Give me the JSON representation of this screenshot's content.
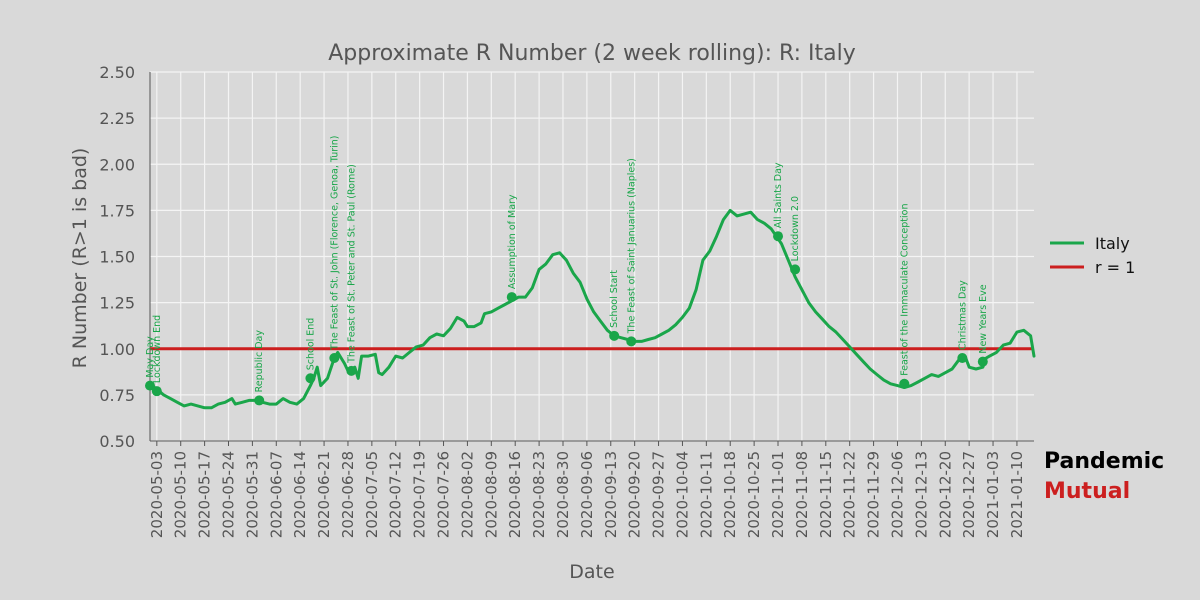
{
  "brand": {
    "line1": "Pandemic",
    "line2": "Mutual",
    "line1_color": "#000000",
    "line2_color": "#cc1f1f"
  },
  "chart_data": {
    "type": "line",
    "title": "Approximate R Number (2 week rolling): R: Italy",
    "xlabel": "Date",
    "ylabel": "R Number (R>1 is bad)",
    "x_start": "2020-05-01",
    "x_end": "2021-01-15",
    "ylim": [
      0.5,
      2.5
    ],
    "yticks": [
      "0.50",
      "0.75",
      "1.00",
      "1.25",
      "1.50",
      "1.75",
      "2.00",
      "2.25",
      "2.50"
    ],
    "xticks": [
      "2020-05-03",
      "2020-05-10",
      "2020-05-17",
      "2020-05-24",
      "2020-05-31",
      "2020-06-07",
      "2020-06-14",
      "2020-06-21",
      "2020-06-28",
      "2020-07-05",
      "2020-07-12",
      "2020-07-19",
      "2020-07-26",
      "2020-08-02",
      "2020-08-09",
      "2020-08-16",
      "2020-08-23",
      "2020-08-30",
      "2020-09-06",
      "2020-09-13",
      "2020-09-20",
      "2020-09-27",
      "2020-10-04",
      "2020-10-11",
      "2020-10-18",
      "2020-10-25",
      "2020-11-01",
      "2020-11-08",
      "2020-11-15",
      "2020-11-22",
      "2020-11-29",
      "2020-12-06",
      "2020-12-13",
      "2020-12-20",
      "2020-12-27",
      "2021-01-03",
      "2021-01-10"
    ],
    "grid": true,
    "legend_position": "right",
    "series": [
      {
        "name": "Italy",
        "color": "#1aa64a",
        "points": [
          [
            "2020-05-01",
            0.81
          ],
          [
            "2020-05-03",
            0.78
          ],
          [
            "2020-05-05",
            0.75
          ],
          [
            "2020-05-07",
            0.73
          ],
          [
            "2020-05-09",
            0.71
          ],
          [
            "2020-05-11",
            0.69
          ],
          [
            "2020-05-13",
            0.7
          ],
          [
            "2020-05-15",
            0.69
          ],
          [
            "2020-05-17",
            0.68
          ],
          [
            "2020-05-19",
            0.68
          ],
          [
            "2020-05-21",
            0.7
          ],
          [
            "2020-05-23",
            0.71
          ],
          [
            "2020-05-25",
            0.73
          ],
          [
            "2020-05-26",
            0.7
          ],
          [
            "2020-05-28",
            0.71
          ],
          [
            "2020-05-30",
            0.72
          ],
          [
            "2020-06-01",
            0.72
          ],
          [
            "2020-06-03",
            0.71
          ],
          [
            "2020-06-05",
            0.7
          ],
          [
            "2020-06-07",
            0.7
          ],
          [
            "2020-06-09",
            0.73
          ],
          [
            "2020-06-11",
            0.71
          ],
          [
            "2020-06-13",
            0.7
          ],
          [
            "2020-06-15",
            0.73
          ],
          [
            "2020-06-17",
            0.8
          ],
          [
            "2020-06-18",
            0.84
          ],
          [
            "2020-06-19",
            0.9
          ],
          [
            "2020-06-20",
            0.8
          ],
          [
            "2020-06-22",
            0.84
          ],
          [
            "2020-06-24",
            0.95
          ],
          [
            "2020-06-25",
            0.98
          ],
          [
            "2020-06-27",
            0.92
          ],
          [
            "2020-06-28",
            0.88
          ],
          [
            "2020-06-30",
            0.9
          ],
          [
            "2020-07-01",
            0.84
          ],
          [
            "2020-07-02",
            0.96
          ],
          [
            "2020-07-04",
            0.96
          ],
          [
            "2020-07-06",
            0.97
          ],
          [
            "2020-07-07",
            0.87
          ],
          [
            "2020-07-08",
            0.86
          ],
          [
            "2020-07-10",
            0.9
          ],
          [
            "2020-07-12",
            0.96
          ],
          [
            "2020-07-14",
            0.95
          ],
          [
            "2020-07-16",
            0.98
          ],
          [
            "2020-07-18",
            1.01
          ],
          [
            "2020-07-20",
            1.02
          ],
          [
            "2020-07-22",
            1.06
          ],
          [
            "2020-07-24",
            1.08
          ],
          [
            "2020-07-26",
            1.07
          ],
          [
            "2020-07-28",
            1.11
          ],
          [
            "2020-07-30",
            1.17
          ],
          [
            "2020-08-01",
            1.15
          ],
          [
            "2020-08-02",
            1.12
          ],
          [
            "2020-08-04",
            1.12
          ],
          [
            "2020-08-06",
            1.14
          ],
          [
            "2020-08-07",
            1.19
          ],
          [
            "2020-08-09",
            1.2
          ],
          [
            "2020-08-11",
            1.22
          ],
          [
            "2020-08-13",
            1.24
          ],
          [
            "2020-08-15",
            1.26
          ],
          [
            "2020-08-17",
            1.28
          ],
          [
            "2020-08-19",
            1.28
          ],
          [
            "2020-08-21",
            1.33
          ],
          [
            "2020-08-23",
            1.43
          ],
          [
            "2020-08-25",
            1.46
          ],
          [
            "2020-08-27",
            1.51
          ],
          [
            "2020-08-29",
            1.52
          ],
          [
            "2020-08-31",
            1.48
          ],
          [
            "2020-09-02",
            1.41
          ],
          [
            "2020-09-04",
            1.36
          ],
          [
            "2020-09-06",
            1.27
          ],
          [
            "2020-09-08",
            1.2
          ],
          [
            "2020-09-10",
            1.15
          ],
          [
            "2020-09-12",
            1.1
          ],
          [
            "2020-09-14",
            1.07
          ],
          [
            "2020-09-16",
            1.06
          ],
          [
            "2020-09-18",
            1.05
          ],
          [
            "2020-09-20",
            1.04
          ],
          [
            "2020-09-22",
            1.04
          ],
          [
            "2020-09-24",
            1.05
          ],
          [
            "2020-09-26",
            1.06
          ],
          [
            "2020-09-28",
            1.08
          ],
          [
            "2020-09-30",
            1.1
          ],
          [
            "2020-10-02",
            1.13
          ],
          [
            "2020-10-04",
            1.17
          ],
          [
            "2020-10-06",
            1.22
          ],
          [
            "2020-10-08",
            1.32
          ],
          [
            "2020-10-10",
            1.48
          ],
          [
            "2020-10-12",
            1.53
          ],
          [
            "2020-10-14",
            1.61
          ],
          [
            "2020-10-16",
            1.7
          ],
          [
            "2020-10-18",
            1.75
          ],
          [
            "2020-10-20",
            1.72
          ],
          [
            "2020-10-22",
            1.73
          ],
          [
            "2020-10-24",
            1.74
          ],
          [
            "2020-10-26",
            1.7
          ],
          [
            "2020-10-28",
            1.68
          ],
          [
            "2020-10-30",
            1.65
          ],
          [
            "2020-11-02",
            1.57
          ],
          [
            "2020-11-04",
            1.48
          ],
          [
            "2020-11-06",
            1.39
          ],
          [
            "2020-11-08",
            1.32
          ],
          [
            "2020-11-10",
            1.25
          ],
          [
            "2020-11-12",
            1.2
          ],
          [
            "2020-11-14",
            1.16
          ],
          [
            "2020-11-16",
            1.12
          ],
          [
            "2020-11-18",
            1.09
          ],
          [
            "2020-11-20",
            1.05
          ],
          [
            "2020-11-22",
            1.01
          ],
          [
            "2020-11-24",
            0.97
          ],
          [
            "2020-11-26",
            0.93
          ],
          [
            "2020-11-28",
            0.89
          ],
          [
            "2020-11-30",
            0.86
          ],
          [
            "2020-12-02",
            0.83
          ],
          [
            "2020-12-04",
            0.81
          ],
          [
            "2020-12-06",
            0.8
          ],
          [
            "2020-12-08",
            0.79
          ],
          [
            "2020-12-10",
            0.8
          ],
          [
            "2020-12-12",
            0.82
          ],
          [
            "2020-12-14",
            0.84
          ],
          [
            "2020-12-16",
            0.86
          ],
          [
            "2020-12-18",
            0.85
          ],
          [
            "2020-12-20",
            0.87
          ],
          [
            "2020-12-22",
            0.89
          ],
          [
            "2020-12-24",
            0.94
          ],
          [
            "2020-12-26",
            0.95
          ],
          [
            "2020-12-27",
            0.9
          ],
          [
            "2020-12-29",
            0.89
          ],
          [
            "2020-12-31",
            0.9
          ],
          [
            "2021-01-01",
            0.95
          ],
          [
            "2021-01-02",
            0.96
          ],
          [
            "2021-01-04",
            0.98
          ],
          [
            "2021-01-06",
            1.02
          ],
          [
            "2021-01-08",
            1.03
          ],
          [
            "2021-01-10",
            1.09
          ],
          [
            "2021-01-12",
            1.1
          ],
          [
            "2021-01-14",
            1.07
          ],
          [
            "2021-01-15",
            0.96
          ]
        ]
      },
      {
        "name": "r = 1",
        "color": "#cc1f1f",
        "points": [
          [
            "2020-05-01",
            1.0
          ],
          [
            "2021-01-15",
            1.0
          ]
        ]
      }
    ],
    "annotations": [
      {
        "date": "2020-05-01",
        "value": 0.8,
        "label": "May Day"
      },
      {
        "date": "2020-05-03",
        "value": 0.77,
        "label": "Lockdown End"
      },
      {
        "date": "2020-06-02",
        "value": 0.72,
        "label": "Republic Day"
      },
      {
        "date": "2020-06-17",
        "value": 0.84,
        "label": "School End"
      },
      {
        "date": "2020-06-24",
        "value": 0.95,
        "label": "The Feast of St. John (Florence, Genoa, Turin)"
      },
      {
        "date": "2020-06-29",
        "value": 0.88,
        "label": "The Feast of St. Peter and St. Paul (Rome)"
      },
      {
        "date": "2020-08-15",
        "value": 1.28,
        "label": "Assumption of Mary"
      },
      {
        "date": "2020-09-14",
        "value": 1.07,
        "label": "School Start"
      },
      {
        "date": "2020-09-19",
        "value": 1.04,
        "label": "The Feast of Saint Januarius (Naples)"
      },
      {
        "date": "2020-11-01",
        "value": 1.61,
        "label": "All Saints Day"
      },
      {
        "date": "2020-11-06",
        "value": 1.43,
        "label": "Lockdown 2.0"
      },
      {
        "date": "2020-12-08",
        "value": 0.81,
        "label": "Feast of the Immaculate Conception"
      },
      {
        "date": "2020-12-25",
        "value": 0.95,
        "label": "Christmas Day"
      },
      {
        "date": "2020-12-31",
        "value": 0.93,
        "label": "New Years Eve"
      }
    ]
  }
}
